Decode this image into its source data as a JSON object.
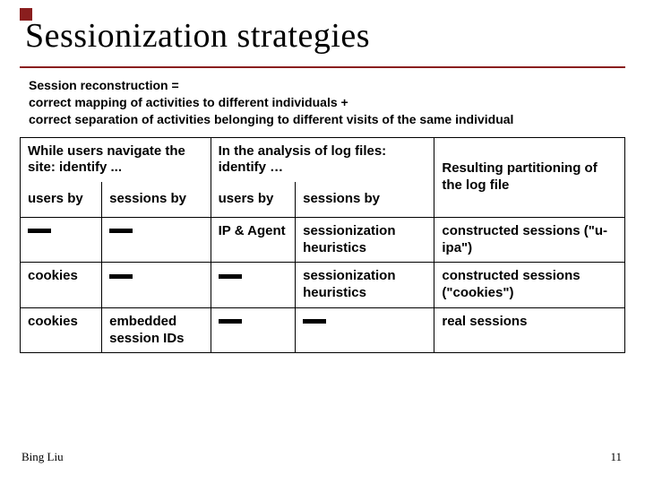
{
  "accent_color": "#8a1e1e",
  "title": "Sessionization strategies",
  "title_fontsize": 38,
  "definition": {
    "label": "Session reconstruction =",
    "line1": "correct mapping of activities to different individuals +",
    "line2": "correct separation of activities belonging to different visits of the same individual",
    "fontsize": 14
  },
  "table": {
    "fontsize": 15,
    "columns": [
      {
        "group": "While users navigate the site: identify ...",
        "sub": "users by"
      },
      {
        "group": "",
        "sub": "sessions by"
      },
      {
        "group": "In the analysis of log files: identify …",
        "sub": "users by"
      },
      {
        "group": "",
        "sub": "sessions by"
      },
      {
        "group": "Resulting partitioning of the log file",
        "sub": ""
      }
    ],
    "rows": [
      [
        "—",
        "—",
        "IP & Agent",
        "sessionization heuristics",
        "constructed sessions (\"u-ipa\")"
      ],
      [
        "cookies",
        "—",
        "—",
        "sessionization heuristics",
        "constructed sessions (\"cookies\")"
      ],
      [
        "cookies",
        "embedded session IDs",
        "—",
        "—",
        "real sessions"
      ]
    ]
  },
  "footer_author": "Bing Liu",
  "page_number": "11"
}
